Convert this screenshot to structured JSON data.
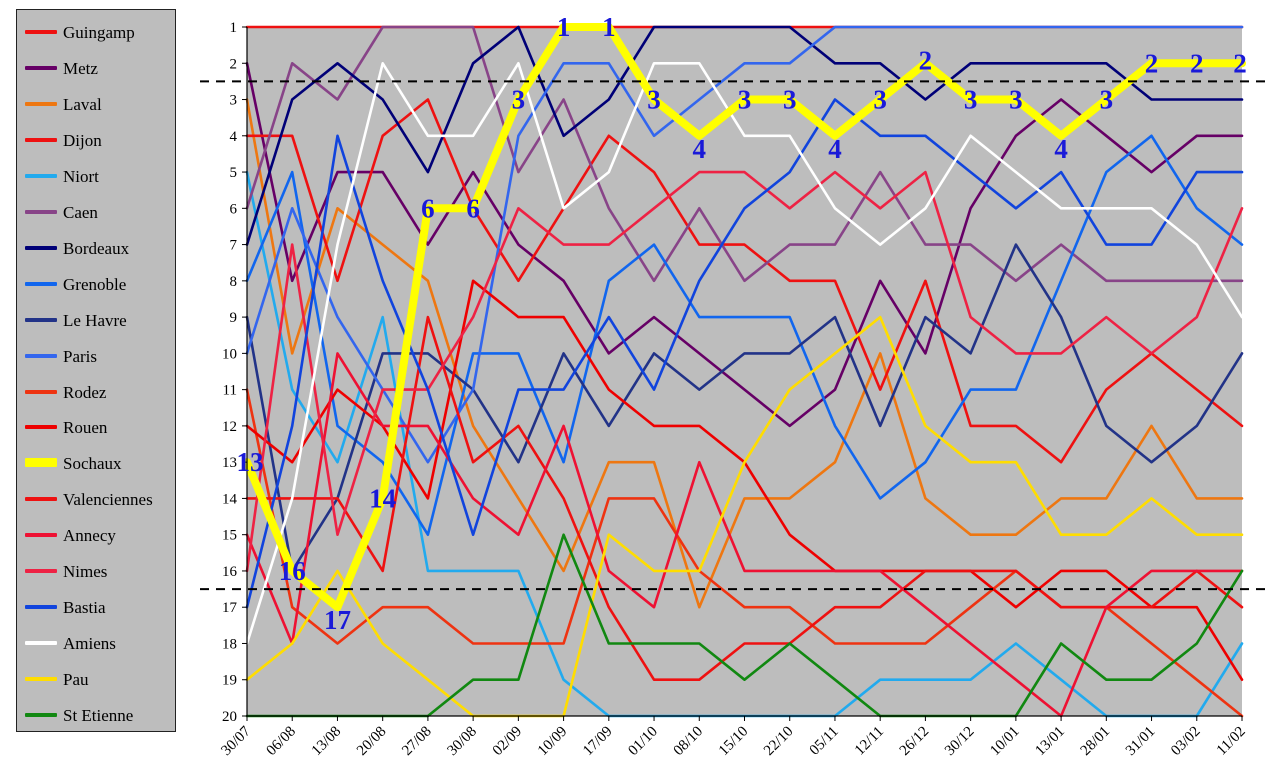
{
  "chart_data": {
    "type": "line",
    "title": "",
    "xlabel": "",
    "ylabel": "",
    "y_inverted": true,
    "ylim": [
      1,
      20
    ],
    "yticks": [
      1,
      2,
      3,
      4,
      5,
      6,
      7,
      8,
      9,
      10,
      11,
      12,
      13,
      14,
      15,
      16,
      17,
      18,
      19,
      20
    ],
    "x": [
      "30/07",
      "06/08",
      "13/08",
      "20/08",
      "27/08",
      "30/08",
      "02/09",
      "10/09",
      "17/09",
      "01/10",
      "08/10",
      "15/10",
      "22/10",
      "05/11",
      "12/11",
      "26/12",
      "30/12",
      "10/01",
      "13/01",
      "28/01",
      "31/01",
      "03/02",
      "11/02"
    ],
    "grid": false,
    "background": "#bdbdbd",
    "legend_position": "left",
    "reference_lines": [
      2.5,
      16.5
    ],
    "series": [
      {
        "name": "Guingamp",
        "color": "#ee1111",
        "values": [
          1,
          1,
          1,
          1,
          1,
          1,
          1,
          1,
          1,
          1,
          1,
          1,
          1,
          1,
          1,
          1,
          1,
          1,
          1,
          1,
          1,
          1,
          1
        ]
      },
      {
        "name": "Metz",
        "color": "#660066",
        "values": [
          2,
          8,
          5,
          5,
          7,
          5,
          7,
          8,
          10,
          9,
          10,
          11,
          12,
          11,
          8,
          10,
          6,
          4,
          3,
          4,
          5,
          4,
          4
        ]
      },
      {
        "name": "Laval",
        "color": "#ee7711",
        "values": [
          3,
          10,
          6,
          7,
          8,
          12,
          14,
          16,
          13,
          13,
          17,
          14,
          14,
          13,
          10,
          14,
          15,
          15,
          14,
          14,
          12,
          14,
          14
        ]
      },
      {
        "name": "Dijon",
        "color": "#ee1111",
        "values": [
          4,
          4,
          8,
          4,
          3,
          6,
          8,
          6,
          4,
          5,
          7,
          7,
          8,
          8,
          11,
          8,
          12,
          12,
          13,
          11,
          10,
          11,
          12
        ]
      },
      {
        "name": "Niort",
        "color": "#22aaee",
        "values": [
          5,
          11,
          13,
          9,
          16,
          16,
          16,
          19,
          20,
          20,
          20,
          20,
          20,
          20,
          19,
          19,
          19,
          18,
          19,
          20,
          20,
          20,
          18
        ]
      },
      {
        "name": "Caen",
        "color": "#884488",
        "values": [
          6,
          2,
          3,
          1,
          1,
          1,
          5,
          3,
          6,
          8,
          6,
          8,
          7,
          7,
          5,
          7,
          7,
          8,
          7,
          8,
          8,
          8,
          8
        ]
      },
      {
        "name": "Bordeaux",
        "color": "#000077",
        "values": [
          7,
          3,
          2,
          3,
          5,
          2,
          1,
          4,
          3,
          1,
          1,
          1,
          1,
          2,
          2,
          3,
          2,
          2,
          2,
          2,
          3,
          3,
          3
        ]
      },
      {
        "name": "Grenoble",
        "color": "#1166ee",
        "values": [
          8,
          5,
          12,
          13,
          15,
          10,
          10,
          13,
          8,
          7,
          9,
          9,
          9,
          12,
          14,
          13,
          11,
          11,
          8,
          5,
          4,
          6,
          7
        ]
      },
      {
        "name": "Le Havre",
        "color": "#223388",
        "values": [
          9,
          16,
          14,
          10,
          10,
          11,
          13,
          10,
          12,
          10,
          11,
          10,
          10,
          9,
          12,
          9,
          10,
          7,
          9,
          12,
          13,
          12,
          10
        ]
      },
      {
        "name": "Paris",
        "color": "#3366ee",
        "values": [
          10,
          6,
          9,
          11,
          13,
          11,
          4,
          2,
          2,
          4,
          3,
          2,
          2,
          1,
          1,
          1,
          1,
          1,
          1,
          1,
          1,
          1,
          1
        ]
      },
      {
        "name": "Rodez",
        "color": "#ee3311",
        "values": [
          11,
          17,
          18,
          17,
          17,
          18,
          18,
          18,
          14,
          14,
          16,
          17,
          17,
          18,
          18,
          18,
          17,
          16,
          17,
          17,
          18,
          19,
          20
        ]
      },
      {
        "name": "Rouen",
        "color": "#ee0000",
        "values": [
          12,
          13,
          11,
          12,
          14,
          8,
          9,
          9,
          11,
          12,
          12,
          13,
          15,
          16,
          16,
          16,
          16,
          17,
          16,
          16,
          17,
          17,
          19
        ]
      },
      {
        "name": "Sochaux",
        "color": "#ffff00",
        "values": [
          13,
          16,
          17,
          14,
          6,
          6,
          3,
          1,
          1,
          3,
          4,
          3,
          3,
          4,
          3,
          2,
          3,
          3,
          4,
          3,
          2,
          2,
          2
        ]
      },
      {
        "name": "Valenciennes",
        "color": "#ee1111",
        "values": [
          14,
          14,
          14,
          16,
          9,
          13,
          12,
          14,
          17,
          19,
          19,
          18,
          18,
          17,
          17,
          16,
          16,
          16,
          17,
          17,
          17,
          16,
          17
        ]
      },
      {
        "name": "Annecy",
        "color": "#ee1133",
        "values": [
          15,
          18,
          10,
          12,
          12,
          14,
          15,
          12,
          16,
          17,
          13,
          16,
          16,
          16,
          16,
          17,
          18,
          19,
          20,
          17,
          16,
          16,
          16
        ]
      },
      {
        "name": "Nimes",
        "color": "#ee2244",
        "values": [
          16,
          7,
          15,
          11,
          11,
          9,
          6,
          7,
          7,
          6,
          5,
          5,
          6,
          5,
          6,
          5,
          9,
          10,
          10,
          9,
          10,
          9,
          6
        ]
      },
      {
        "name": "Bastia",
        "color": "#1144dd",
        "values": [
          17,
          12,
          4,
          8,
          11,
          15,
          11,
          11,
          9,
          11,
          8,
          6,
          5,
          3,
          4,
          4,
          5,
          6,
          5,
          7,
          7,
          5,
          5
        ]
      },
      {
        "name": "Amiens",
        "color": "#ffffff",
        "values": [
          18,
          14,
          7,
          2,
          4,
          4,
          2,
          6,
          5,
          2,
          2,
          4,
          4,
          6,
          7,
          6,
          4,
          5,
          6,
          6,
          6,
          7,
          9
        ]
      },
      {
        "name": "Pau",
        "color": "#ffdd00",
        "values": [
          19,
          18,
          16,
          18,
          19,
          20,
          20,
          20,
          15,
          16,
          16,
          13,
          11,
          10,
          9,
          12,
          13,
          13,
          15,
          15,
          14,
          15,
          15
        ]
      },
      {
        "name": "St Etienne",
        "color": "#118811",
        "values": [
          20,
          20,
          20,
          20,
          20,
          19,
          19,
          15,
          18,
          18,
          18,
          19,
          18,
          19,
          20,
          20,
          20,
          20,
          18,
          19,
          19,
          18,
          16
        ]
      }
    ],
    "annotations": [
      "13",
      "16",
      "17",
      "14",
      "6",
      "6",
      "3",
      "1",
      "1",
      "3",
      "4",
      "3",
      "3",
      "4",
      "3",
      "2",
      "3",
      "3",
      "4",
      "3",
      "2",
      "2",
      "2"
    ]
  }
}
